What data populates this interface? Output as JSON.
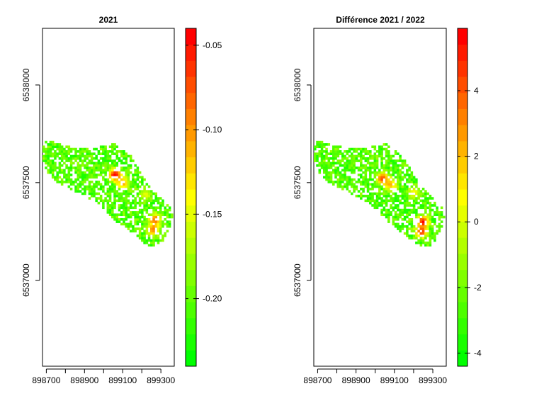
{
  "chart_data": [
    {
      "type": "heatmap",
      "title": "2021",
      "xlabel": "",
      "ylabel": "",
      "x_ticks": [
        "898700",
        "898900",
        "899100",
        "899300"
      ],
      "y_ticks": [
        "6537000",
        "6537500",
        "6538000"
      ],
      "xlim": [
        898680,
        899370
      ],
      "ylim": [
        6536560,
        6538290
      ],
      "colorbar": {
        "ticks": [
          "-0.05",
          "-0.10",
          "-0.15",
          "-0.20"
        ],
        "range": [
          -0.24,
          -0.04
        ],
        "colors": [
          "#00ff00",
          "#1aff00",
          "#33ff00",
          "#4dff00",
          "#66ff00",
          "#80ff00",
          "#99ff00",
          "#b3ff00",
          "#ccff00",
          "#e6ff00",
          "#ffff00",
          "#ffe600",
          "#ffcc00",
          "#ffb300",
          "#ff9900",
          "#ff8000",
          "#ff6600",
          "#ff4d00",
          "#ff3300",
          "#ff1a00",
          "#ff0000"
        ]
      },
      "map_hotspots": [
        {
          "x": 899060,
          "y": 6537540,
          "value": -0.04
        },
        {
          "x": 899100,
          "y": 6537500,
          "value": -0.1
        },
        {
          "x": 899270,
          "y": 6537310,
          "value": -0.08
        },
        {
          "x": 899260,
          "y": 6537260,
          "value": -0.09
        },
        {
          "x": 899220,
          "y": 6537440,
          "value": -0.15
        }
      ]
    },
    {
      "type": "heatmap",
      "title": "Différence 2021 / 2022",
      "xlabel": "",
      "ylabel": "",
      "x_ticks": [
        "898700",
        "898900",
        "899100",
        "899300"
      ],
      "y_ticks": [
        "6537000",
        "6537500",
        "6538000"
      ],
      "xlim": [
        898680,
        899370
      ],
      "ylim": [
        6536560,
        6538290
      ],
      "colorbar": {
        "ticks": [
          "4",
          "2",
          "0",
          "-2",
          "-4"
        ],
        "range": [
          -4.4,
          5.9
        ],
        "colors": [
          "#00ff00",
          "#1aff00",
          "#33ff00",
          "#4dff00",
          "#66ff00",
          "#80ff00",
          "#99ff00",
          "#b3ff00",
          "#ccff00",
          "#e6ff00",
          "#ffff00",
          "#ffe600",
          "#ffcc00",
          "#ffb300",
          "#ff9900",
          "#ff8000",
          "#ff6600",
          "#ff4d00",
          "#ff3300",
          "#ff1a00",
          "#ff0000"
        ]
      },
      "map_hotspots": [
        {
          "x": 899040,
          "y": 6537520,
          "value": 4.5
        },
        {
          "x": 899080,
          "y": 6537490,
          "value": 2.5
        },
        {
          "x": 899250,
          "y": 6537300,
          "value": 5.5
        },
        {
          "x": 899240,
          "y": 6537250,
          "value": 4.8
        },
        {
          "x": 899200,
          "y": 6537450,
          "value": 1.0
        }
      ]
    }
  ]
}
